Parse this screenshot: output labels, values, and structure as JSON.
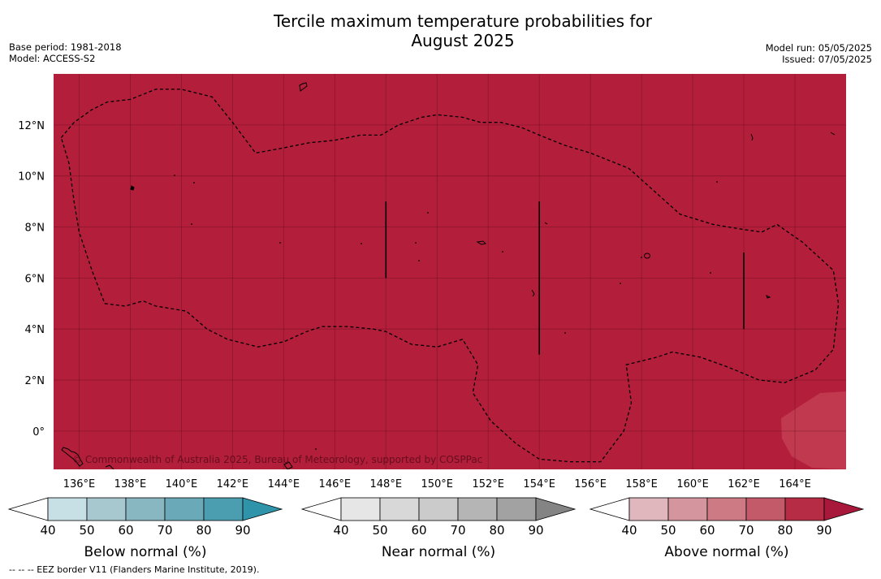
{
  "header": {
    "title_line1": "Tercile maximum temperature probabilities for",
    "title_line2": "August 2025",
    "base_period": "Base period: 1981-2018",
    "model": "Model: ACCESS-S2",
    "model_run": "Model run: 05/05/2025",
    "issued": "Issued: 07/05/2025"
  },
  "chart_data": {
    "type": "heatmap",
    "title": "Tercile maximum temperature probabilities for August 2025",
    "x_ticks": [
      "136°E",
      "138°E",
      "140°E",
      "142°E",
      "144°E",
      "146°E",
      "148°E",
      "150°E",
      "152°E",
      "154°E",
      "156°E",
      "158°E",
      "160°E",
      "162°E",
      "164°E"
    ],
    "x_tick_values": [
      136,
      138,
      140,
      142,
      144,
      146,
      148,
      150,
      152,
      154,
      156,
      158,
      160,
      162,
      164
    ],
    "y_ticks": [
      "12°N",
      "10°N",
      "8°N",
      "6°N",
      "4°N",
      "2°N",
      "0°"
    ],
    "y_tick_values": [
      12,
      10,
      8,
      6,
      4,
      2,
      0
    ],
    "xlim": [
      135,
      166
    ],
    "ylim": [
      -1.5,
      14
    ],
    "grid": true,
    "field": {
      "dominant_category": "Above normal",
      "dominant_value_range": [
        80,
        90
      ],
      "dominant_color": "#b31e3a",
      "minor_category": "Above normal",
      "minor_value_range": [
        70,
        80
      ],
      "minor_color": "#c0394e",
      "minor_region": "south-east corner"
    },
    "eez_boundary": [
      [
        135.3,
        11.5
      ],
      [
        135.8,
        12.1
      ],
      [
        136.5,
        12.6
      ],
      [
        137.1,
        12.9
      ],
      [
        138.0,
        13.0
      ],
      [
        139.0,
        13.4
      ],
      [
        140.0,
        13.4
      ],
      [
        141.2,
        13.1
      ],
      [
        142.0,
        12.1
      ],
      [
        142.9,
        10.9
      ],
      [
        144.0,
        11.1
      ],
      [
        145.0,
        11.3
      ],
      [
        146.0,
        11.4
      ],
      [
        147.0,
        11.6
      ],
      [
        147.8,
        11.6
      ],
      [
        148.5,
        12.0
      ],
      [
        149.4,
        12.3
      ],
      [
        150.0,
        12.4
      ],
      [
        151.0,
        12.3
      ],
      [
        151.7,
        12.1
      ],
      [
        152.5,
        12.1
      ],
      [
        153.3,
        11.9
      ],
      [
        154.0,
        11.6
      ],
      [
        155.0,
        11.2
      ],
      [
        156.0,
        10.9
      ],
      [
        157.5,
        10.3
      ],
      [
        158.5,
        9.4
      ],
      [
        159.5,
        8.5
      ],
      [
        160.8,
        8.1
      ],
      [
        162.0,
        7.9
      ],
      [
        162.7,
        7.8
      ],
      [
        163.3,
        8.1
      ],
      [
        164.3,
        7.4
      ],
      [
        165.5,
        6.3
      ],
      [
        165.7,
        5.0
      ],
      [
        165.5,
        3.2
      ],
      [
        164.8,
        2.4
      ],
      [
        163.6,
        1.9
      ],
      [
        162.6,
        2.0
      ],
      [
        161.4,
        2.5
      ],
      [
        160.3,
        2.9
      ],
      [
        159.2,
        3.1
      ],
      [
        158.6,
        2.9
      ],
      [
        157.4,
        2.6
      ],
      [
        157.6,
        1.1
      ],
      [
        157.3,
        0.0
      ],
      [
        157.0,
        -0.4
      ],
      [
        156.4,
        -1.2
      ],
      [
        155.2,
        -1.2
      ],
      [
        154.0,
        -1.1
      ],
      [
        153.1,
        -0.5
      ],
      [
        152.1,
        0.4
      ],
      [
        151.4,
        1.5
      ],
      [
        151.6,
        2.6
      ],
      [
        151.0,
        3.6
      ],
      [
        150.0,
        3.3
      ],
      [
        149.0,
        3.4
      ],
      [
        148.0,
        3.9
      ],
      [
        147.5,
        4.0
      ],
      [
        146.5,
        4.1
      ],
      [
        145.5,
        4.1
      ],
      [
        144.9,
        3.9
      ],
      [
        144.0,
        3.5
      ],
      [
        143.0,
        3.3
      ],
      [
        141.8,
        3.6
      ],
      [
        141.0,
        4.0
      ],
      [
        140.2,
        4.7
      ],
      [
        139.0,
        4.9
      ],
      [
        138.5,
        5.1
      ],
      [
        137.8,
        4.9
      ],
      [
        137.0,
        5.0
      ],
      [
        136.5,
        6.3
      ],
      [
        136.0,
        7.8
      ],
      [
        135.8,
        9.0
      ],
      [
        135.6,
        10.5
      ],
      [
        135.3,
        11.5
      ]
    ],
    "eez_interior_lines": [
      [
        [
          148.0,
          9.0
        ],
        [
          148.0,
          6.0
        ]
      ],
      [
        [
          154.0,
          9.0
        ],
        [
          154.0,
          3.0
        ]
      ],
      [
        [
          162.0,
          7.0
        ],
        [
          162.0,
          4.0
        ]
      ]
    ],
    "colorbars": [
      {
        "label": "Below normal (%)",
        "ticks": [
          "40",
          "50",
          "60",
          "70",
          "80",
          "90"
        ],
        "colors": [
          "#ffffff",
          "#c7e0e6",
          "#a8c8cf",
          "#88b6c1",
          "#6aaab8",
          "#4a9eb0",
          "#2f94aa"
        ]
      },
      {
        "label": "Near normal (%)",
        "ticks": [
          "40",
          "50",
          "60",
          "70",
          "80",
          "90"
        ],
        "colors": [
          "#ffffff",
          "#e6e6e6",
          "#d8d8d8",
          "#cbcbcb",
          "#b5b5b5",
          "#a2a2a2",
          "#848484"
        ]
      },
      {
        "label": "Above normal (%)",
        "ticks": [
          "40",
          "50",
          "60",
          "70",
          "80",
          "90"
        ],
        "colors": [
          "#ffffff",
          "#e0b7bd",
          "#d5959e",
          "#cd7a85",
          "#c35a6a",
          "#b52c44",
          "#a8183a"
        ]
      }
    ],
    "copyright": "© Commonwealth of Australia 2025, Bureau of Meteorology, supported by COSPPac"
  },
  "footnote": "--  --  -- EEZ border V11 (Flanders Marine Institute, 2019)."
}
